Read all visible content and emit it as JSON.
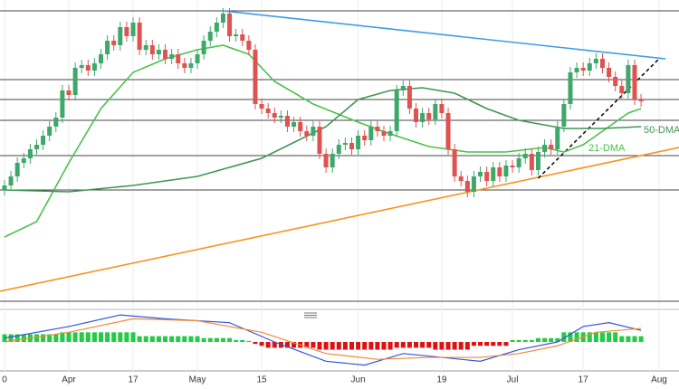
{
  "chart_data": {
    "type": "candlestick",
    "xlim": [
      -0.7,
      104.9
    ],
    "ylim": [
      0,
      340
    ],
    "xticks": [
      {
        "value": 0,
        "label": "0"
      },
      {
        "value": 10,
        "label": "Apr"
      },
      {
        "value": 20,
        "label": "17"
      },
      {
        "value": 30,
        "label": "May"
      },
      {
        "value": 40,
        "label": "15"
      },
      {
        "value": 55,
        "label": "Jun"
      },
      {
        "value": 68,
        "label": "19"
      },
      {
        "value": 79,
        "label": "Jul"
      },
      {
        "value": 90,
        "label": "17"
      },
      {
        "value": 101.8,
        "label": "Aug"
      }
    ],
    "up_color": "#3ea86a",
    "down_color": "#e0524f",
    "open": [
      130,
      135,
      145,
      160,
      165,
      175,
      180,
      190,
      200,
      210,
      240,
      235,
      265,
      268,
      262,
      270,
      280,
      295,
      290,
      310,
      300,
      315,
      285,
      290,
      280,
      285,
      275,
      280,
      270,
      265,
      270,
      280,
      295,
      305,
      315,
      325,
      300,
      302,
      295,
      285,
      225,
      220,
      215,
      210,
      212,
      200,
      205,
      195,
      190,
      200,
      170,
      155,
      170,
      180,
      182,
      175,
      190,
      185,
      200,
      195,
      190,
      195,
      240,
      245,
      220,
      205,
      215,
      208,
      225,
      215,
      175,
      145,
      140,
      128,
      145,
      150,
      140,
      155,
      145,
      157,
      155,
      165,
      170,
      152,
      172,
      180,
      175,
      200,
      225,
      260,
      265,
      262,
      270,
      275,
      265,
      255,
      245,
      237,
      268,
      230
    ],
    "high": [
      141,
      151,
      166,
      171,
      181,
      186,
      196,
      206,
      216,
      246,
      246,
      271,
      274,
      274,
      276,
      286,
      301,
      301,
      316,
      316,
      321,
      321,
      296,
      296,
      291,
      291,
      286,
      286,
      276,
      276,
      286,
      301,
      311,
      321,
      331,
      331,
      308,
      308,
      301,
      291,
      231,
      226,
      221,
      218,
      218,
      211,
      211,
      201,
      206,
      206,
      176,
      176,
      186,
      188,
      188,
      196,
      196,
      206,
      206,
      201,
      201,
      246,
      251,
      251,
      226,
      221,
      221,
      231,
      231,
      221,
      181,
      151,
      146,
      151,
      156,
      156,
      161,
      161,
      163,
      163,
      171,
      176,
      176,
      178,
      186,
      186,
      206,
      231,
      266,
      271,
      271,
      276,
      281,
      281,
      271,
      261,
      251,
      274,
      274,
      236
    ],
    "low": [
      124,
      129,
      139,
      154,
      159,
      169,
      174,
      184,
      194,
      204,
      229,
      229,
      259,
      256,
      256,
      264,
      274,
      284,
      284,
      294,
      294,
      279,
      279,
      274,
      274,
      269,
      269,
      264,
      259,
      259,
      264,
      274,
      289,
      299,
      309,
      294,
      294,
      289,
      279,
      219,
      214,
      209,
      204,
      204,
      194,
      194,
      189,
      184,
      184,
      164,
      149,
      149,
      164,
      174,
      169,
      169,
      179,
      179,
      189,
      184,
      184,
      189,
      234,
      214,
      199,
      199,
      202,
      202,
      209,
      169,
      139,
      134,
      122,
      122,
      139,
      134,
      134,
      139,
      139,
      149,
      149,
      159,
      146,
      146,
      166,
      169,
      169,
      194,
      219,
      254,
      256,
      256,
      264,
      259,
      249,
      239,
      231,
      231,
      224,
      222
    ],
    "close": [
      135,
      145,
      160,
      165,
      175,
      180,
      190,
      200,
      210,
      240,
      235,
      265,
      268,
      262,
      270,
      280,
      295,
      290,
      310,
      300,
      315,
      285,
      290,
      280,
      285,
      275,
      280,
      270,
      265,
      270,
      280,
      295,
      305,
      315,
      325,
      300,
      302,
      295,
      285,
      225,
      220,
      215,
      210,
      212,
      200,
      205,
      195,
      190,
      200,
      170,
      155,
      170,
      180,
      182,
      175,
      190,
      185,
      200,
      195,
      190,
      195,
      240,
      245,
      220,
      205,
      215,
      208,
      225,
      215,
      175,
      145,
      140,
      128,
      145,
      150,
      140,
      155,
      145,
      157,
      155,
      165,
      170,
      152,
      172,
      180,
      175,
      200,
      225,
      260,
      265,
      262,
      270,
      275,
      265,
      255,
      245,
      237,
      268,
      230,
      228
    ],
    "lines": [
      {
        "name": "21-DMA",
        "color": "#49c24a",
        "x": [
          0,
          5,
          10,
          15,
          20,
          25,
          30,
          34,
          38,
          42,
          48,
          55,
          60,
          66,
          72,
          78,
          84,
          87,
          90,
          94,
          97,
          99
        ],
        "values": [
          78,
          95,
          160,
          220,
          260,
          275,
          285,
          290,
          280,
          250,
          225,
          205,
          192,
          178,
          172,
          172,
          177,
          172,
          180,
          200,
          215,
          220
        ]
      },
      {
        "name": "50-DMA",
        "color": "#3f9650",
        "x": [
          0,
          10,
          20,
          30,
          40,
          50,
          55,
          60,
          65,
          70,
          75,
          80,
          87,
          93,
          99
        ],
        "values": [
          130,
          128,
          135,
          145,
          165,
          200,
          230,
          240,
          243,
          237,
          220,
          207,
          198,
          198,
          200
        ]
      }
    ],
    "trendlines": [
      {
        "color": "#3d9be9",
        "x": [
          34,
          102.8
        ],
        "values": [
          328,
          275
        ]
      },
      {
        "color": "#f7941d",
        "x": [
          -0.7,
          104.9
        ],
        "values": [
          18,
          177
        ]
      },
      {
        "color": "#111111",
        "dashed": true,
        "x": [
          83,
          101.8
        ],
        "values": [
          143,
          275
        ]
      }
    ],
    "levels": [
      328,
      252,
      230,
      207,
      168,
      130,
      7
    ],
    "level_color": "#444444",
    "macd": {
      "ylim": [
        -15,
        15
      ],
      "up_color": "#22cc44",
      "down_color": "#dd1111",
      "histogram": [
        4,
        4,
        4,
        4,
        4,
        4,
        4,
        4,
        4,
        5,
        5,
        5,
        5,
        5,
        5,
        5,
        5,
        5,
        5,
        5,
        5,
        3,
        3,
        3,
        3,
        3,
        3,
        3,
        3,
        3,
        3,
        2,
        2,
        2,
        2,
        2,
        1,
        1,
        0.5,
        -1,
        -2,
        -3,
        -3,
        -3,
        -3,
        -3,
        -3,
        -3,
        -3,
        -4,
        -4,
        -4,
        -4,
        -4,
        -4,
        -4,
        -4,
        -4,
        -4,
        -4,
        -4,
        -3,
        -3,
        -3,
        -3,
        -3,
        -3,
        -4,
        -4,
        -4,
        -4,
        -4,
        -4,
        -2,
        -2,
        -2,
        -2,
        -2,
        -2,
        1,
        1,
        1,
        1,
        2,
        2,
        2,
        2,
        5,
        5,
        5,
        5,
        5,
        5,
        5,
        5,
        5,
        3,
        3,
        3,
        3
      ],
      "lines": [
        {
          "color": "#3355dd",
          "x": [
            0,
            10,
            18,
            25,
            35,
            42,
            50,
            56,
            62,
            68,
            74,
            80,
            86,
            90,
            94,
            99
          ],
          "values": [
            2,
            8,
            14,
            12,
            10,
            0,
            -10,
            -12,
            -6,
            -8,
            -10,
            -4,
            0,
            8,
            10,
            6
          ]
        },
        {
          "color": "#f08a3a",
          "x": [
            0,
            10,
            20,
            30,
            40,
            50,
            58,
            66,
            74,
            80,
            86,
            92,
            99
          ],
          "values": [
            0,
            5,
            12,
            11,
            5,
            -6,
            -9,
            -8,
            -8,
            -6,
            -2,
            5,
            7
          ]
        }
      ]
    }
  }
}
